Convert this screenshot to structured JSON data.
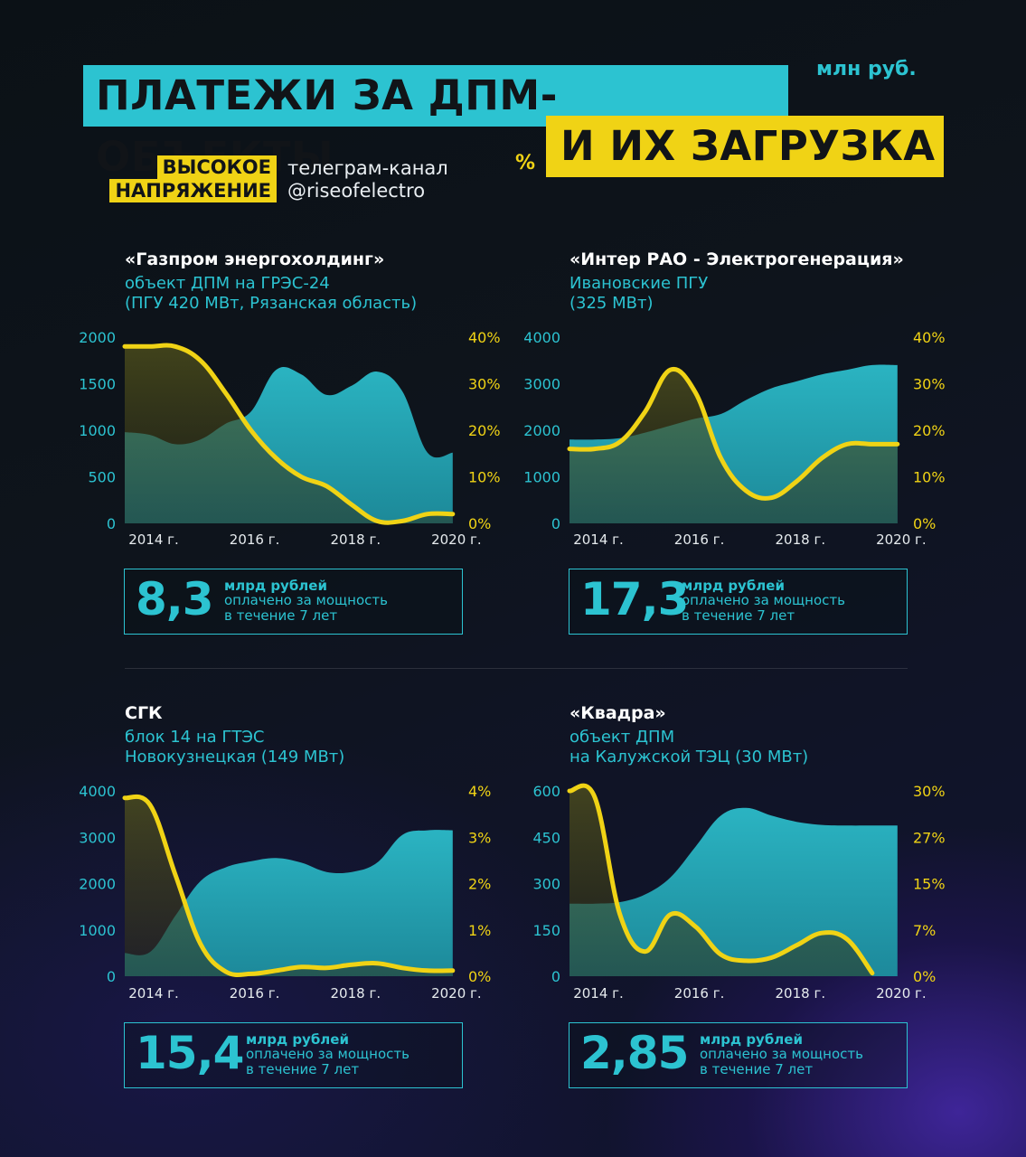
{
  "header": {
    "title_line1": "ПЛАТЕЖИ ЗА ДПМ-ОБЪЕКТЫ",
    "title_line2": "И ИХ ЗАГРУЗКА",
    "unit_money": "млн руб.",
    "unit_percent": "%",
    "brand_line1": "ВЫСОКОЕ",
    "brand_line2": "НАПРЯЖЕНИЕ",
    "channel_line1": "телеграм-канал",
    "channel_line2": "@riseofelectro"
  },
  "colors": {
    "payments": "#2cc3d1",
    "load": "#f0d315",
    "title_cyan": "#2cc3d1",
    "title_yellow": "#f0d315"
  },
  "panels": [
    {
      "title": "«Газпром энергохолдинг»",
      "subtitle_line1": "объект ДПМ на ГРЭС-24",
      "subtitle_line2": "(ПГУ 420 МВт, Рязанская область)",
      "summary": {
        "value": "8,3",
        "line1": "млрд рублей",
        "line2": "оплачено за мощность",
        "line3": "в течение 7 лет"
      }
    },
    {
      "title": "«Интер РАО - Электрогенерация»",
      "subtitle_line1": "Ивановские ПГУ",
      "subtitle_line2": "(325 МВт)",
      "summary": {
        "value": "17,3",
        "line1": "млрд рублей",
        "line2": "оплачено за мощность",
        "line3": "в течение 7 лет"
      }
    },
    {
      "title": "СГК",
      "subtitle_line1": "блок 14 на ГТЭС",
      "subtitle_line2": "Новокузнецкая (149 МВт)",
      "summary": {
        "value": "15,4",
        "line1": "млрд рублей",
        "line2": "оплачено за мощность",
        "line3": "в течение 7 лет"
      }
    },
    {
      "title": "«Квадра»",
      "subtitle_line1": "объект ДПМ",
      "subtitle_line2": "на Калужской ТЭЦ (30 МВт)",
      "summary": {
        "value": "2,85",
        "line1": "млрд рублей",
        "line2": "оплачено за мощность",
        "line3": "в течение 7 лет"
      }
    }
  ],
  "chart_data": [
    {
      "type": "area",
      "x": [
        2014,
        2014.5,
        2015,
        2015.5,
        2016,
        2016.5,
        2017,
        2017.5,
        2018,
        2018.5,
        2019,
        2019.5,
        2020,
        2020.5
      ],
      "xticks": [
        "2014 г.",
        "2016 г.",
        "2018 г.",
        "2020 г."
      ],
      "xtick_values": [
        2014,
        2016,
        2018,
        2020
      ],
      "xlim": [
        2014,
        2020.7
      ],
      "left_axis": {
        "ticks": [
          "2000",
          "1500",
          "1000",
          "500",
          "0"
        ],
        "ylim": [
          0,
          2000
        ]
      },
      "right_axis": {
        "ticks": [
          "40%",
          "30%",
          "20%",
          "10%",
          "0%"
        ],
        "ylim": [
          0,
          40
        ]
      },
      "series": [
        {
          "values": [
            980,
            950,
            850,
            900,
            1070,
            1200,
            1650,
            1600,
            1380,
            1480,
            1630,
            1420,
            760,
            760
          ]
        },
        {
          "values": [
            38,
            38,
            38,
            35,
            28,
            20,
            14,
            10,
            8,
            4,
            0.5,
            0.5,
            2,
            2
          ]
        }
      ]
    },
    {
      "type": "area",
      "x": [
        2014,
        2014.5,
        2015,
        2015.5,
        2016,
        2016.5,
        2017,
        2017.5,
        2018,
        2018.5,
        2019,
        2019.5,
        2020,
        2020.5
      ],
      "xticks": [
        "2014 г.",
        "2016 г.",
        "2018 г.",
        "2020 г."
      ],
      "xtick_values": [
        2014,
        2016,
        2018,
        2020
      ],
      "xlim": [
        2014,
        2020.7
      ],
      "left_axis": {
        "ticks": [
          "4000",
          "3000",
          "2000",
          "1000",
          "0"
        ],
        "ylim": [
          0,
          4000
        ]
      },
      "right_axis": {
        "ticks": [
          "40%",
          "30%",
          "20%",
          "10%",
          "0%"
        ],
        "ylim": [
          0,
          40
        ]
      },
      "series": [
        {
          "values": [
            1800,
            1800,
            1830,
            1950,
            2100,
            2250,
            2350,
            2650,
            2900,
            3050,
            3200,
            3300,
            3400,
            3400
          ]
        },
        {
          "values": [
            16,
            16,
            17.5,
            24,
            33,
            28,
            14,
            7,
            5.5,
            9,
            14,
            17,
            17,
            17
          ]
        }
      ]
    },
    {
      "type": "area",
      "x": [
        2014,
        2014.5,
        2015,
        2015.5,
        2016,
        2016.5,
        2017,
        2017.5,
        2018,
        2018.5,
        2019,
        2019.5,
        2020,
        2020.5
      ],
      "xticks": [
        "2014 г.",
        "2016 г.",
        "2018 г.",
        "2020 г."
      ],
      "xtick_values": [
        2014,
        2016,
        2018,
        2020
      ],
      "xlim": [
        2014,
        2020.7
      ],
      "left_axis": {
        "ticks": [
          "4000",
          "3000",
          "2000",
          "1000",
          "0"
        ],
        "ylim": [
          0,
          4000
        ]
      },
      "right_axis": {
        "ticks": [
          "4%",
          "3%",
          "2%",
          "1%",
          "0%"
        ],
        "ylim": [
          0,
          4
        ]
      },
      "series": [
        {
          "values": [
            500,
            520,
            1300,
            2050,
            2350,
            2480,
            2550,
            2450,
            2250,
            2250,
            2450,
            3050,
            3150,
            3150
          ]
        },
        {
          "values": [
            3.85,
            3.7,
            2.2,
            0.7,
            0.1,
            0.05,
            0.12,
            0.2,
            0.18,
            0.25,
            0.28,
            0.18,
            0.12,
            0.12
          ]
        }
      ]
    },
    {
      "type": "area",
      "x": [
        2014,
        2014.5,
        2015,
        2015.5,
        2016,
        2016.5,
        2017,
        2017.5,
        2018,
        2018.5,
        2019,
        2019.5,
        2020,
        2020.5
      ],
      "xticks": [
        "2014 г.",
        "2016 г.",
        "2018 г.",
        "2020 г."
      ],
      "xtick_values": [
        2014,
        2016,
        2018,
        2020
      ],
      "xlim": [
        2014,
        2020.7
      ],
      "left_axis": {
        "ticks": [
          "600",
          "450",
          "300",
          "150",
          "0"
        ],
        "ylim": [
          0,
          600
        ]
      },
      "right_axis": {
        "ticks": [
          "30%",
          "27%",
          "15%",
          "7%",
          "0%"
        ],
        "ylim": [
          0,
          30
        ]
      },
      "series": [
        {
          "values": [
            235,
            235,
            240,
            265,
            320,
            420,
            520,
            545,
            520,
            500,
            490,
            488,
            488,
            488
          ]
        },
        {
          "values": [
            30,
            29,
            10,
            4,
            10,
            8,
            3.5,
            2.5,
            3,
            5,
            7,
            6,
            0.5,
            null
          ]
        }
      ]
    }
  ]
}
